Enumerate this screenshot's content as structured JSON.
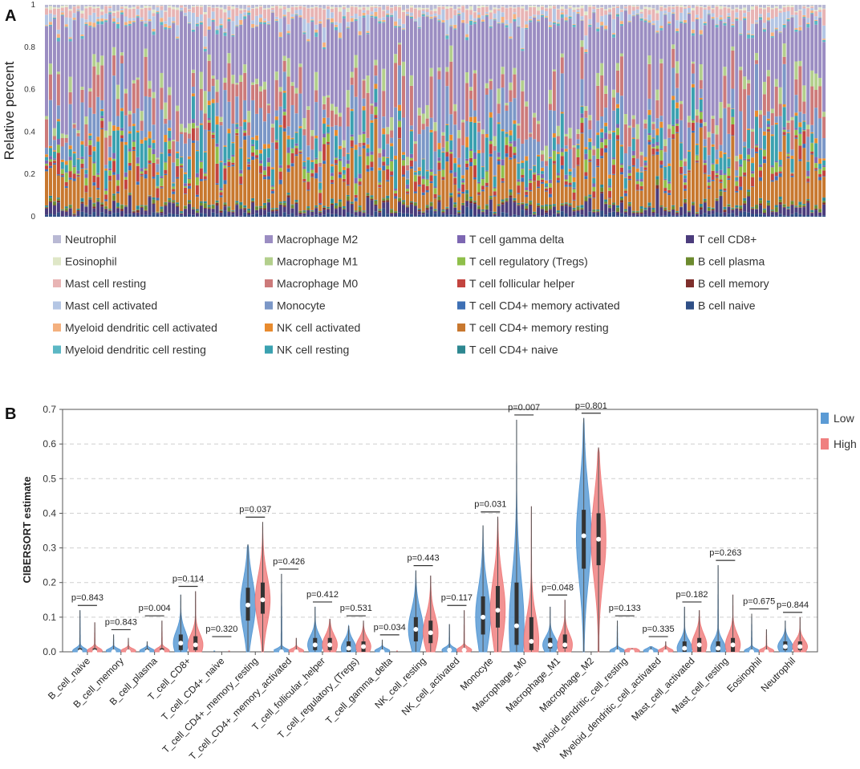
{
  "chart_data": [
    {
      "panel": "A",
      "type": "bar",
      "stacked": true,
      "ylabel": "Relative percent",
      "ylim": [
        0,
        1
      ],
      "yticks": [
        "0",
        "0.2",
        "0.4",
        "0.6",
        "0.8",
        "1"
      ],
      "n_samples": 197,
      "note": "Per-sample CIBERSORT immune-cell fractions; each bar sums to 1. Component means listed per cell type (approximate reading).",
      "series": [
        {
          "name": "Neutrophil",
          "color": "#b9b9d4",
          "mean": 0.01
        },
        {
          "name": "Eosinophil",
          "color": "#dfe7c7",
          "mean": 0.006
        },
        {
          "name": "Mast cell resting",
          "color": "#e8b4b4",
          "mean": 0.028
        },
        {
          "name": "Mast cell activated",
          "color": "#b4c6e4",
          "mean": 0.028
        },
        {
          "name": "Myeloid dendritic cell activated",
          "color": "#f4b07e",
          "mean": 0.008
        },
        {
          "name": "Myeloid dendritic cell resting",
          "color": "#5bb7c4",
          "mean": 0.006
        },
        {
          "name": "Macrophage M2",
          "color": "#9b8dc2",
          "mean": 0.345
        },
        {
          "name": "Macrophage M1",
          "color": "#b3cf8c",
          "mean": 0.03
        },
        {
          "name": "Macrophage M0",
          "color": "#cc7a7a",
          "mean": 0.08
        },
        {
          "name": "Monocyte",
          "color": "#7b97c7",
          "mean": 0.09
        },
        {
          "name": "NK cell activated",
          "color": "#e88b2e",
          "mean": 0.012
        },
        {
          "name": "NK cell resting",
          "color": "#3aa1b0",
          "mean": 0.06
        },
        {
          "name": "T cell gamma delta",
          "color": "#7d67b2",
          "mean": 0.01
        },
        {
          "name": "T cell regulatory (Tregs)",
          "color": "#8fbf4a",
          "mean": 0.022
        },
        {
          "name": "T cell follicular helper",
          "color": "#c3443f",
          "mean": 0.025
        },
        {
          "name": "T cell CD4+ memory activated",
          "color": "#3e70b5",
          "mean": 0.008
        },
        {
          "name": "T cell CD4+ memory resting",
          "color": "#c8782f",
          "mean": 0.15
        },
        {
          "name": "T cell CD4+ naive",
          "color": "#2d8790",
          "mean": 0.006
        },
        {
          "name": "T cell CD8+",
          "color": "#4b3c7c",
          "mean": 0.03
        },
        {
          "name": "B cell plasma",
          "color": "#6c8a2e",
          "mean": 0.008
        },
        {
          "name": "B cell memory",
          "color": "#7e2f2c",
          "mean": 0.004
        },
        {
          "name": "B cell naive",
          "color": "#2f4f86",
          "mean": 0.01
        }
      ],
      "stack_order_bottom_to_top": [
        "B cell naive",
        "T cell CD8+",
        "B cell memory",
        "B cell plasma",
        "T cell CD4+ naive",
        "T cell CD4+ memory resting",
        "T cell CD4+ memory activated",
        "T cell follicular helper",
        "T cell regulatory (Tregs)",
        "T cell gamma delta",
        "NK cell resting",
        "NK cell activated",
        "Monocyte",
        "Macrophage M0",
        "Macrophage M1",
        "Macrophage M2",
        "Myeloid dendritic cell resting",
        "Myeloid dendritic cell activated",
        "Mast cell activated",
        "Mast cell resting",
        "Eosinophil",
        "Neutrophil"
      ],
      "legend_columns": [
        [
          "Neutrophil",
          "Eosinophil",
          "Mast cell resting",
          "Mast cell activated",
          "Myeloid dendritic cell activated",
          "Myeloid dendritic cell resting"
        ],
        [
          "Macrophage M2",
          "Macrophage M1",
          "Macrophage M0",
          "Monocyte",
          "NK cell activated",
          "NK cell resting"
        ],
        [
          "T cell gamma delta",
          "T cell regulatory (Tregs)",
          "T cell follicular helper",
          "T cell CD4+ memory activated",
          "T cell CD4+ memory resting",
          "T cell CD4+ naive"
        ],
        [
          "T cell CD8+",
          "B cell plasma",
          "B cell memory",
          "B cell naive"
        ]
      ]
    },
    {
      "panel": "B",
      "type": "violin",
      "ylabel": "CIBERSORT estimate",
      "ylim": [
        0,
        0.7
      ],
      "yticks": [
        "0.0",
        "0.1",
        "0.2",
        "0.3",
        "0.4",
        "0.5",
        "0.6",
        "0.7"
      ],
      "groups": [
        {
          "name": "Low",
          "color": "#5b9bd5"
        },
        {
          "name": "High",
          "color": "#f08080"
        }
      ],
      "categories": [
        {
          "name": "B_cell_naive",
          "p": "p=0.843",
          "low": {
            "max": 0.12,
            "median": 0.0,
            "q1": 0.0,
            "q3": 0.01
          },
          "high": {
            "max": 0.085,
            "median": 0.0,
            "q1": 0.0,
            "q3": 0.01
          }
        },
        {
          "name": "B_cell_memory",
          "p": "p=0.843",
          "low": {
            "max": 0.05,
            "median": 0.0,
            "q1": 0.0,
            "q3": 0.005
          },
          "high": {
            "max": 0.04,
            "median": 0.0,
            "q1": 0.0,
            "q3": 0.005
          }
        },
        {
          "name": "B_cell_plasma",
          "p": "p=0.004",
          "low": {
            "max": 0.03,
            "median": 0.0,
            "q1": 0.0,
            "q3": 0.008
          },
          "high": {
            "max": 0.09,
            "median": 0.0,
            "q1": 0.0,
            "q3": 0.01
          }
        },
        {
          "name": "T_cell_CD8+",
          "p": "p=0.114",
          "low": {
            "max": 0.165,
            "median": 0.025,
            "q1": 0.005,
            "q3": 0.05
          },
          "high": {
            "max": 0.175,
            "median": 0.02,
            "q1": 0.005,
            "q3": 0.045
          }
        },
        {
          "name": "T_cell_CD4+_naive",
          "p": "p=0.320",
          "low": {
            "max": 0.0,
            "median": 0.0,
            "q1": 0.0,
            "q3": 0.0
          },
          "high": {
            "max": 0.0,
            "median": 0.0,
            "q1": 0.0,
            "q3": 0.0
          }
        },
        {
          "name": "T_cell_CD4+_memory_resting",
          "p": "p=0.037",
          "low": {
            "max": 0.31,
            "median": 0.135,
            "q1": 0.09,
            "q3": 0.185
          },
          "high": {
            "max": 0.375,
            "median": 0.15,
            "q1": 0.11,
            "q3": 0.2
          }
        },
        {
          "name": "T_cell_CD4+_memory_activated",
          "p": "p=0.426",
          "low": {
            "max": 0.225,
            "median": 0.0,
            "q1": 0.0,
            "q3": 0.0
          },
          "high": {
            "max": 0.04,
            "median": 0.0,
            "q1": 0.0,
            "q3": 0.0
          }
        },
        {
          "name": "T_cell_follicular_helper",
          "p": "p=0.412",
          "low": {
            "max": 0.13,
            "median": 0.02,
            "q1": 0.005,
            "q3": 0.04
          },
          "high": {
            "max": 0.095,
            "median": 0.02,
            "q1": 0.005,
            "q3": 0.04
          }
        },
        {
          "name": "T_cell_regulatory_(Tregs)",
          "p": "p=0.531",
          "low": {
            "max": 0.075,
            "median": 0.01,
            "q1": 0.0,
            "q3": 0.03
          },
          "high": {
            "max": 0.09,
            "median": 0.015,
            "q1": 0.0,
            "q3": 0.03
          }
        },
        {
          "name": "T_cell_gamma_delta",
          "p": "p=0.034",
          "low": {
            "max": 0.035,
            "median": 0.0,
            "q1": 0.0,
            "q3": 0.0
          },
          "high": {
            "max": 0.0,
            "median": 0.0,
            "q1": 0.0,
            "q3": 0.0
          }
        },
        {
          "name": "NK_cell_resting",
          "p": "p=0.443",
          "low": {
            "max": 0.235,
            "median": 0.065,
            "q1": 0.03,
            "q3": 0.1
          },
          "high": {
            "max": 0.22,
            "median": 0.055,
            "q1": 0.025,
            "q3": 0.09
          }
        },
        {
          "name": "NK_cell_activated",
          "p": "p=0.117",
          "low": {
            "max": 0.08,
            "median": 0.005,
            "q1": 0.0,
            "q3": 0.01
          },
          "high": {
            "max": 0.12,
            "median": 0.005,
            "q1": 0.0,
            "q3": 0.01
          }
        },
        {
          "name": "Monocyte",
          "p": "p=0.031",
          "low": {
            "max": 0.365,
            "median": 0.1,
            "q1": 0.05,
            "q3": 0.16
          },
          "high": {
            "max": 0.39,
            "median": 0.12,
            "q1": 0.07,
            "q3": 0.19
          }
        },
        {
          "name": "Macrophage_M0",
          "p": "p=0.007",
          "low": {
            "max": 0.67,
            "median": 0.075,
            "q1": 0.02,
            "q3": 0.2
          },
          "high": {
            "max": 0.42,
            "median": 0.03,
            "q1": 0.005,
            "q3": 0.1
          }
        },
        {
          "name": "Macrophage_M1",
          "p": "p=0.048",
          "low": {
            "max": 0.13,
            "median": 0.02,
            "q1": 0.01,
            "q3": 0.04
          },
          "high": {
            "max": 0.15,
            "median": 0.02,
            "q1": 0.01,
            "q3": 0.05
          }
        },
        {
          "name": "Macrophage_M2",
          "p": "p=0.801",
          "low": {
            "max": 0.675,
            "median": 0.335,
            "q1": 0.24,
            "q3": 0.41
          },
          "high": {
            "max": 0.59,
            "median": 0.325,
            "q1": 0.25,
            "q3": 0.4
          }
        },
        {
          "name": "Myeloid_dendritic_cell_resting",
          "p": "p=0.133",
          "low": {
            "max": 0.09,
            "median": 0.0,
            "q1": 0.0,
            "q3": 0.0
          },
          "high": {
            "max": 0.01,
            "median": 0.0,
            "q1": 0.0,
            "q3": 0.0
          }
        },
        {
          "name": "Myeloid_dendritic_cell_activated",
          "p": "p=0.335",
          "low": {
            "max": 0.015,
            "median": 0.0,
            "q1": 0.0,
            "q3": 0.0
          },
          "high": {
            "max": 0.03,
            "median": 0.0,
            "q1": 0.0,
            "q3": 0.0
          }
        },
        {
          "name": "Mast_cell_activated",
          "p": "p=0.182",
          "low": {
            "max": 0.13,
            "median": 0.01,
            "q1": 0.0,
            "q3": 0.03
          },
          "high": {
            "max": 0.12,
            "median": 0.02,
            "q1": 0.0,
            "q3": 0.04
          }
        },
        {
          "name": "Mast_cell_resting",
          "p": "p=0.263",
          "low": {
            "max": 0.25,
            "median": 0.01,
            "q1": 0.0,
            "q3": 0.03
          },
          "high": {
            "max": 0.165,
            "median": 0.02,
            "q1": 0.0,
            "q3": 0.04
          }
        },
        {
          "name": "Eosinophil",
          "p": "p=0.675",
          "low": {
            "max": 0.11,
            "median": 0.0,
            "q1": 0.0,
            "q3": 0.0
          },
          "high": {
            "max": 0.065,
            "median": 0.0,
            "q1": 0.0,
            "q3": 0.0
          }
        },
        {
          "name": "Neutrophil",
          "p": "p=0.844",
          "low": {
            "max": 0.09,
            "median": 0.015,
            "q1": 0.005,
            "q3": 0.03
          },
          "high": {
            "max": 0.1,
            "median": 0.015,
            "q1": 0.005,
            "q3": 0.03
          }
        }
      ]
    }
  ],
  "labels": {
    "panel_a": "A",
    "panel_b": "B"
  }
}
